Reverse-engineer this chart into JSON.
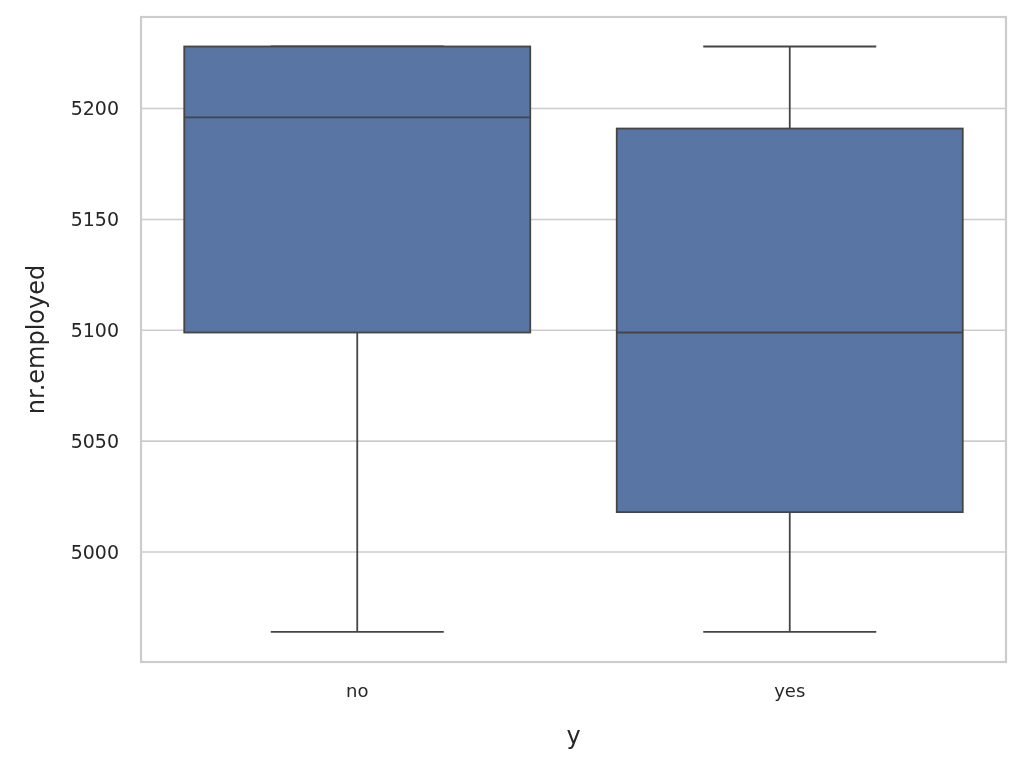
{
  "chart_data": {
    "type": "box",
    "xlabel": "y",
    "ylabel": "nr.employed",
    "categories": [
      "no",
      "yes"
    ],
    "boxes": [
      {
        "low": 4964,
        "q1": 5099,
        "median": 5196,
        "q3": 5228,
        "high": 5228
      },
      {
        "low": 4964,
        "q1": 5018,
        "median": 5099,
        "q3": 5191,
        "high": 5228
      }
    ],
    "color": "#5875a4",
    "ylim": [
      4950.4,
      5241.3
    ],
    "yticks": [
      5000,
      5050,
      5100,
      5150,
      5200
    ],
    "grid": "y"
  }
}
